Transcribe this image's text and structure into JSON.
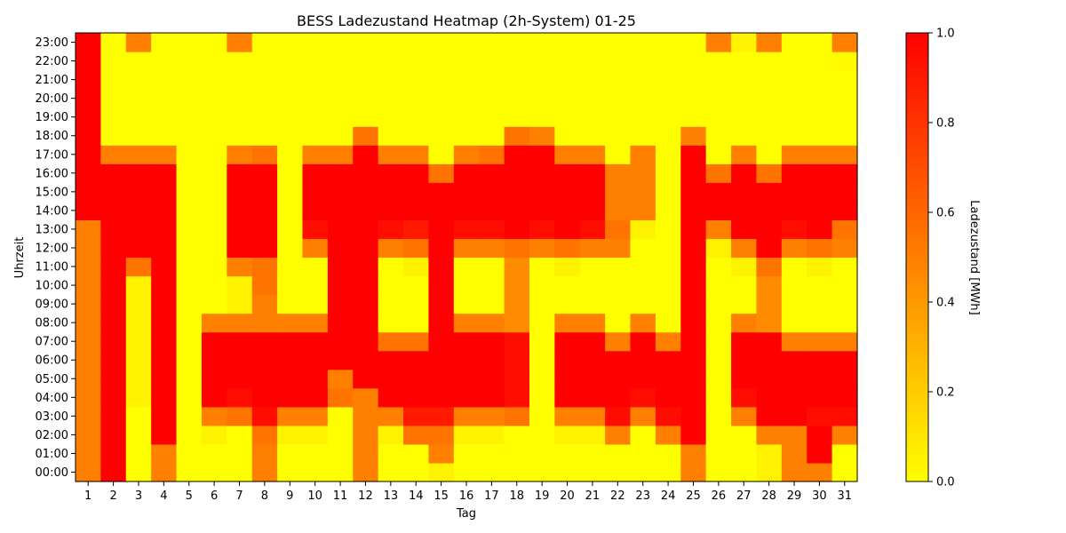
{
  "chart_data": {
    "type": "heatmap",
    "title": "BESS Ladezustand Heatmap (2h-System) 01-25",
    "xlabel": "Tag",
    "ylabel": "Uhrzeit",
    "colorbar_label": "Ladezustand [MWh]",
    "x_labels": [
      "1",
      "2",
      "3",
      "4",
      "5",
      "6",
      "7",
      "8",
      "9",
      "10",
      "11",
      "12",
      "13",
      "14",
      "15",
      "16",
      "17",
      "18",
      "19",
      "20",
      "21",
      "22",
      "23",
      "24",
      "25",
      "26",
      "27",
      "28",
      "29",
      "30",
      "31"
    ],
    "y_labels": [
      "00:00",
      "01:00",
      "02:00",
      "03:00",
      "04:00",
      "05:00",
      "06:00",
      "07:00",
      "08:00",
      "09:00",
      "10:00",
      "11:00",
      "12:00",
      "13:00",
      "14:00",
      "15:00",
      "16:00",
      "17:00",
      "18:00",
      "19:00",
      "20:00",
      "21:00",
      "22:00",
      "23:00"
    ],
    "value_range": [
      0,
      1
    ],
    "colorbar_ticks": [
      "0.0",
      "0.2",
      "0.4",
      "0.6",
      "0.8",
      "1.0"
    ],
    "colormap": [
      "#ffff00",
      "#ff0000"
    ],
    "values": [
      [
        0.5,
        1.0,
        0.0,
        0.5,
        0.0,
        0.0,
        0.0,
        0.5,
        0.0,
        0.0,
        0.0,
        0.5,
        0.0,
        0.0,
        0.05,
        0.0,
        0.0,
        0.0,
        0.0,
        0.0,
        0.0,
        0.0,
        0.0,
        0.0,
        0.5,
        0.0,
        0.0,
        0.05,
        0.5,
        0.5,
        0.0
      ],
      [
        0.5,
        1.0,
        0.0,
        0.5,
        0.0,
        0.0,
        0.0,
        0.5,
        0.0,
        0.0,
        0.0,
        0.5,
        0.0,
        0.0,
        0.5,
        0.0,
        0.0,
        0.0,
        0.0,
        0.0,
        0.0,
        0.0,
        0.0,
        0.0,
        0.5,
        0.0,
        0.0,
        0.05,
        0.5,
        1.0,
        0.0
      ],
      [
        0.5,
        1.0,
        0.0,
        1.0,
        0.0,
        0.05,
        0.0,
        0.55,
        0.05,
        0.05,
        0.0,
        0.5,
        0.05,
        0.55,
        0.55,
        0.05,
        0.05,
        0.0,
        0.0,
        0.05,
        0.05,
        0.5,
        0.0,
        0.5,
        1.0,
        0.0,
        0.0,
        0.5,
        0.5,
        1.0,
        0.5
      ],
      [
        0.5,
        1.0,
        0.0,
        1.0,
        0.0,
        0.5,
        0.55,
        0.95,
        0.5,
        0.5,
        0.0,
        0.5,
        0.5,
        0.9,
        0.9,
        0.5,
        0.5,
        0.55,
        0.0,
        0.5,
        0.5,
        0.95,
        0.5,
        0.95,
        1.0,
        0.0,
        0.5,
        1.0,
        1.0,
        0.95,
        0.95
      ],
      [
        0.5,
        1.0,
        0.05,
        1.0,
        0.0,
        1.0,
        0.95,
        1.0,
        1.0,
        1.0,
        0.55,
        0.5,
        1.0,
        1.0,
        1.0,
        1.0,
        1.0,
        0.95,
        0.0,
        1.0,
        1.0,
        1.0,
        0.95,
        1.0,
        1.0,
        0.0,
        0.95,
        1.0,
        1.0,
        1.0,
        1.0
      ],
      [
        0.5,
        1.0,
        0.05,
        1.0,
        0.0,
        1.0,
        1.0,
        1.0,
        1.0,
        1.0,
        0.5,
        1.0,
        1.0,
        1.0,
        1.0,
        1.0,
        1.0,
        0.95,
        0.0,
        1.0,
        1.0,
        1.0,
        1.0,
        1.0,
        1.0,
        0.0,
        1.0,
        1.0,
        1.0,
        1.0,
        1.0
      ],
      [
        0.5,
        1.0,
        0.05,
        1.0,
        0.0,
        1.0,
        1.0,
        1.0,
        1.0,
        1.0,
        1.0,
        1.0,
        1.0,
        1.0,
        1.0,
        1.0,
        1.0,
        0.95,
        0.0,
        1.0,
        1.0,
        1.0,
        1.0,
        1.0,
        1.0,
        0.0,
        1.0,
        1.0,
        1.0,
        1.0,
        1.0
      ],
      [
        0.5,
        1.0,
        0.05,
        1.0,
        0.0,
        1.0,
        1.0,
        1.0,
        1.0,
        1.0,
        1.0,
        1.0,
        0.55,
        0.55,
        1.0,
        1.0,
        1.0,
        0.95,
        0.0,
        1.0,
        1.0,
        0.5,
        1.0,
        0.5,
        1.0,
        0.0,
        1.0,
        1.0,
        0.5,
        0.5,
        0.5
      ],
      [
        0.5,
        1.0,
        0.05,
        1.0,
        0.0,
        0.5,
        0.5,
        0.5,
        0.5,
        0.5,
        1.0,
        1.0,
        0.0,
        0.0,
        1.0,
        0.5,
        0.5,
        0.45,
        0.0,
        0.5,
        0.5,
        0.0,
        0.5,
        0.0,
        1.0,
        0.0,
        0.5,
        0.45,
        0.0,
        0.0,
        0.0
      ],
      [
        0.5,
        1.0,
        0.05,
        1.0,
        0.0,
        0.0,
        0.05,
        0.5,
        0.0,
        0.0,
        1.0,
        1.0,
        0.0,
        0.0,
        1.0,
        0.0,
        0.0,
        0.45,
        0.0,
        0.0,
        0.0,
        0.0,
        0.0,
        0.0,
        1.0,
        0.0,
        0.0,
        0.45,
        0.0,
        0.0,
        0.0
      ],
      [
        0.5,
        1.0,
        0.05,
        1.0,
        0.0,
        0.0,
        0.05,
        0.55,
        0.0,
        0.0,
        1.0,
        1.0,
        0.0,
        0.0,
        1.0,
        0.0,
        0.0,
        0.45,
        0.0,
        0.0,
        0.0,
        0.0,
        0.0,
        0.0,
        1.0,
        0.0,
        0.0,
        0.45,
        0.0,
        0.0,
        0.0
      ],
      [
        0.5,
        1.0,
        0.55,
        1.0,
        0.0,
        0.0,
        0.5,
        0.55,
        0.0,
        0.0,
        1.0,
        1.0,
        0.0,
        0.05,
        1.0,
        0.0,
        0.0,
        0.45,
        0.0,
        0.05,
        0.0,
        0.0,
        0.0,
        0.0,
        1.0,
        0.0,
        0.05,
        0.55,
        0.0,
        0.05,
        0.0
      ],
      [
        0.5,
        1.0,
        1.0,
        1.0,
        0.0,
        0.0,
        1.0,
        1.0,
        0.0,
        0.5,
        1.0,
        1.0,
        0.5,
        0.55,
        1.0,
        0.5,
        0.5,
        0.55,
        0.5,
        0.55,
        0.5,
        0.5,
        0.0,
        0.0,
        1.0,
        0.05,
        0.5,
        1.0,
        0.5,
        0.55,
        0.5
      ],
      [
        0.5,
        1.0,
        1.0,
        1.0,
        0.0,
        0.0,
        1.0,
        1.0,
        0.0,
        0.95,
        1.0,
        1.0,
        0.95,
        0.9,
        1.0,
        0.95,
        0.95,
        1.0,
        0.95,
        1.0,
        0.95,
        0.55,
        0.05,
        0.0,
        1.0,
        0.5,
        1.0,
        1.0,
        0.95,
        1.0,
        0.55
      ],
      [
        1.0,
        1.0,
        1.0,
        1.0,
        0.0,
        0.0,
        1.0,
        1.0,
        0.0,
        1.0,
        1.0,
        1.0,
        1.0,
        1.0,
        1.0,
        1.0,
        1.0,
        1.0,
        1.0,
        1.0,
        1.0,
        0.5,
        0.5,
        0.0,
        1.0,
        1.0,
        1.0,
        1.0,
        1.0,
        1.0,
        1.0
      ],
      [
        1.0,
        1.0,
        1.0,
        1.0,
        0.0,
        0.0,
        1.0,
        1.0,
        0.0,
        1.0,
        1.0,
        1.0,
        1.0,
        1.0,
        1.0,
        1.0,
        1.0,
        1.0,
        1.0,
        1.0,
        1.0,
        0.5,
        0.5,
        0.0,
        1.0,
        1.0,
        1.0,
        1.0,
        1.0,
        1.0,
        1.0
      ],
      [
        1.0,
        1.0,
        1.0,
        1.0,
        0.0,
        0.0,
        1.0,
        1.0,
        0.0,
        1.0,
        1.0,
        1.0,
        1.0,
        1.0,
        0.55,
        1.0,
        1.0,
        1.0,
        1.0,
        1.0,
        1.0,
        0.5,
        0.5,
        0.0,
        1.0,
        0.55,
        1.0,
        0.55,
        1.0,
        1.0,
        1.0
      ],
      [
        1.0,
        0.5,
        0.5,
        0.5,
        0.0,
        0.0,
        0.5,
        0.55,
        0.0,
        0.5,
        0.5,
        1.0,
        0.5,
        0.5,
        0.0,
        0.5,
        0.55,
        1.0,
        1.0,
        0.5,
        0.5,
        0.0,
        0.5,
        0.0,
        1.0,
        0.0,
        0.5,
        0.0,
        0.5,
        0.5,
        0.5
      ],
      [
        1.0,
        0.0,
        0.0,
        0.0,
        0.0,
        0.0,
        0.0,
        0.0,
        0.0,
        0.0,
        0.0,
        0.55,
        0.0,
        0.0,
        0.0,
        0.0,
        0.0,
        0.55,
        0.5,
        0.0,
        0.0,
        0.0,
        0.0,
        0.0,
        0.5,
        0.0,
        0.0,
        0.0,
        0.0,
        0.0,
        0.0
      ],
      [
        1.0,
        0.0,
        0.0,
        0.0,
        0.0,
        0.0,
        0.0,
        0.0,
        0.0,
        0.0,
        0.0,
        0.0,
        0.0,
        0.0,
        0.0,
        0.0,
        0.0,
        0.0,
        0.0,
        0.0,
        0.0,
        0.0,
        0.0,
        0.0,
        0.0,
        0.0,
        0.0,
        0.0,
        0.0,
        0.0,
        0.0
      ],
      [
        1.0,
        0.0,
        0.0,
        0.0,
        0.0,
        0.0,
        0.0,
        0.0,
        0.0,
        0.0,
        0.0,
        0.0,
        0.0,
        0.0,
        0.0,
        0.0,
        0.0,
        0.0,
        0.0,
        0.0,
        0.0,
        0.0,
        0.0,
        0.0,
        0.0,
        0.0,
        0.0,
        0.0,
        0.0,
        0.0,
        0.0
      ],
      [
        1.0,
        0.0,
        0.0,
        0.0,
        0.0,
        0.0,
        0.0,
        0.0,
        0.0,
        0.0,
        0.0,
        0.0,
        0.0,
        0.0,
        0.0,
        0.0,
        0.0,
        0.0,
        0.0,
        0.0,
        0.0,
        0.0,
        0.0,
        0.0,
        0.0,
        0.0,
        0.0,
        0.0,
        0.0,
        0.0,
        0.0
      ],
      [
        1.0,
        0.0,
        0.0,
        0.0,
        0.0,
        0.0,
        0.0,
        0.0,
        0.0,
        0.0,
        0.0,
        0.0,
        0.0,
        0.0,
        0.0,
        0.0,
        0.0,
        0.0,
        0.0,
        0.0,
        0.0,
        0.0,
        0.0,
        0.0,
        0.0,
        0.0,
        0.0,
        0.0,
        0.0,
        0.0,
        0.02
      ],
      [
        1.0,
        0.0,
        0.5,
        0.0,
        0.0,
        0.0,
        0.5,
        0.0,
        0.0,
        0.0,
        0.0,
        0.0,
        0.0,
        0.0,
        0.0,
        0.0,
        0.0,
        0.0,
        0.0,
        0.0,
        0.0,
        0.0,
        0.0,
        0.0,
        0.0,
        0.5,
        0.05,
        0.5,
        0.0,
        0.0,
        0.5
      ]
    ]
  }
}
